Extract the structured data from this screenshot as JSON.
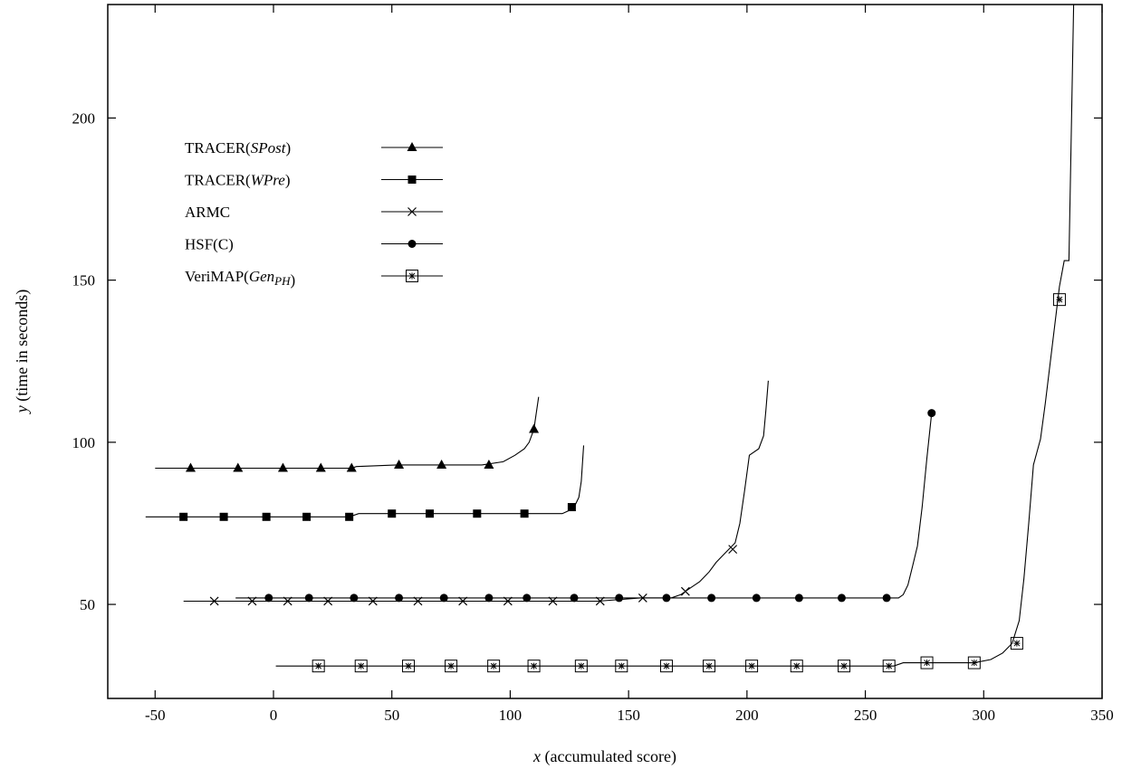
{
  "chart_data": {
    "type": "line",
    "title": "",
    "xlabel": {
      "var": "x",
      "text": "(accumulated score)"
    },
    "ylabel": {
      "var": "y",
      "text": "(time in seconds)"
    },
    "xlim": [
      -70,
      350
    ],
    "ylim": [
      21,
      235
    ],
    "xticks": [
      -50,
      0,
      50,
      100,
      150,
      200,
      250,
      300,
      350
    ],
    "yticks": [
      50,
      100,
      150,
      200
    ],
    "grid": false,
    "legend_position": "upper-left",
    "series": [
      {
        "name": "TRACER(SPost)",
        "label_parts": [
          {
            "t": "TRACER("
          },
          {
            "t": "SPost",
            "i": true
          },
          {
            "t": ")"
          }
        ],
        "marker": "triangle",
        "line": [
          [
            -50,
            92
          ],
          [
            33,
            92
          ],
          [
            35,
            92.5
          ],
          [
            52,
            93
          ],
          [
            88,
            93
          ],
          [
            97,
            94
          ],
          [
            102,
            96
          ],
          [
            106,
            98
          ],
          [
            108,
            100
          ],
          [
            110,
            104
          ],
          [
            112,
            114
          ]
        ],
        "markers": [
          [
            -35,
            92
          ],
          [
            -15,
            92
          ],
          [
            4,
            92
          ],
          [
            20,
            92
          ],
          [
            33,
            92
          ],
          [
            53,
            93
          ],
          [
            71,
            93
          ],
          [
            91,
            93
          ],
          [
            110,
            104
          ]
        ]
      },
      {
        "name": "TRACER(WPre)",
        "label_parts": [
          {
            "t": "TRACER("
          },
          {
            "t": "WPre",
            "i": true
          },
          {
            "t": ")"
          }
        ],
        "marker": "square",
        "line": [
          [
            -54,
            77
          ],
          [
            32,
            77
          ],
          [
            36,
            78
          ],
          [
            122,
            78
          ],
          [
            125,
            79
          ],
          [
            127,
            80
          ],
          [
            129,
            83
          ],
          [
            130,
            88
          ],
          [
            131,
            99
          ]
        ],
        "markers": [
          [
            -38,
            77
          ],
          [
            -21,
            77
          ],
          [
            -3,
            77
          ],
          [
            14,
            77
          ],
          [
            32,
            77
          ],
          [
            50,
            78
          ],
          [
            66,
            78
          ],
          [
            86,
            78
          ],
          [
            106,
            78
          ],
          [
            126,
            80
          ]
        ]
      },
      {
        "name": "ARMC",
        "label_parts": [
          {
            "t": "ARMC"
          }
        ],
        "marker": "x",
        "line": [
          [
            -38,
            51
          ],
          [
            137,
            51
          ],
          [
            155,
            52
          ],
          [
            168,
            52
          ],
          [
            172,
            53
          ],
          [
            176,
            55
          ],
          [
            180,
            57
          ],
          [
            184,
            60
          ],
          [
            187,
            63
          ],
          [
            191,
            66
          ],
          [
            195,
            69
          ],
          [
            197,
            75
          ],
          [
            199,
            85
          ],
          [
            201,
            96
          ],
          [
            205,
            98
          ],
          [
            207,
            102
          ],
          [
            208,
            110
          ],
          [
            209,
            119
          ]
        ],
        "markers": [
          [
            -25,
            51
          ],
          [
            -9,
            51
          ],
          [
            6,
            51
          ],
          [
            23,
            51
          ],
          [
            42,
            51
          ],
          [
            61,
            51
          ],
          [
            80,
            51
          ],
          [
            99,
            51
          ],
          [
            118,
            51
          ],
          [
            138,
            51
          ],
          [
            156,
            52
          ],
          [
            174,
            54
          ],
          [
            194,
            67
          ]
        ]
      },
      {
        "name": "HSF(C)",
        "label_parts": [
          {
            "t": "HSF(C)"
          }
        ],
        "marker": "circle",
        "line": [
          [
            -16,
            52
          ],
          [
            264,
            52
          ],
          [
            266,
            53
          ],
          [
            268,
            56
          ],
          [
            270,
            62
          ],
          [
            272,
            68
          ],
          [
            274,
            80
          ],
          [
            276,
            95
          ],
          [
            278,
            109
          ]
        ],
        "markers": [
          [
            -2,
            52
          ],
          [
            15,
            52
          ],
          [
            34,
            52
          ],
          [
            53,
            52
          ],
          [
            72,
            52
          ],
          [
            91,
            52
          ],
          [
            107,
            52
          ],
          [
            127,
            52
          ],
          [
            146,
            52
          ],
          [
            166,
            52
          ],
          [
            185,
            52
          ],
          [
            204,
            52
          ],
          [
            222,
            52
          ],
          [
            240,
            52
          ],
          [
            259,
            52
          ],
          [
            278,
            109
          ]
        ]
      },
      {
        "name": "VeriMAP(GenPH)",
        "label_parts": [
          {
            "t": "VeriMAP("
          },
          {
            "t": "Gen",
            "i": true
          },
          {
            "t": "PH",
            "i": true,
            "sub": true
          },
          {
            "t": ")"
          }
        ],
        "marker": "boxed-star",
        "line": [
          [
            1,
            31
          ],
          [
            262,
            31
          ],
          [
            266,
            32
          ],
          [
            296,
            32
          ],
          [
            303,
            33
          ],
          [
            308,
            35
          ],
          [
            312,
            38
          ],
          [
            315,
            45
          ],
          [
            317,
            58
          ],
          [
            319,
            75
          ],
          [
            321,
            93
          ],
          [
            324,
            101
          ],
          [
            326,
            112
          ],
          [
            329,
            130
          ],
          [
            332,
            148
          ],
          [
            334,
            156
          ],
          [
            336,
            156
          ],
          [
            338,
            235
          ]
        ],
        "markers": [
          [
            19,
            31
          ],
          [
            37,
            31
          ],
          [
            57,
            31
          ],
          [
            75,
            31
          ],
          [
            93,
            31
          ],
          [
            110,
            31
          ],
          [
            130,
            31
          ],
          [
            147,
            31
          ],
          [
            166,
            31
          ],
          [
            184,
            31
          ],
          [
            202,
            31
          ],
          [
            221,
            31
          ],
          [
            241,
            31
          ],
          [
            260,
            31
          ],
          [
            276,
            32
          ],
          [
            296,
            32
          ],
          [
            314,
            38
          ],
          [
            332,
            144
          ]
        ]
      }
    ]
  }
}
